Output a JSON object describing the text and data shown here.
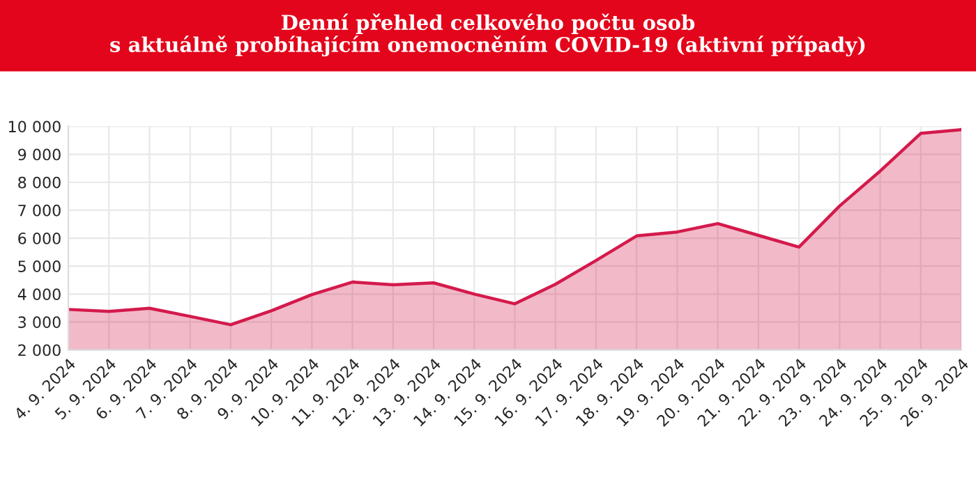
{
  "chart_data": {
    "type": "area",
    "title": "Denní přehled celkového počtu osob\ns aktuálně probíhajícím onemocněním COVID-19 (aktivní případy)",
    "categories": [
      "4. 9. 2024",
      "5. 9. 2024",
      "6. 9. 2024",
      "7. 9. 2024",
      "8. 9. 2024",
      "9. 9. 2024",
      "10. 9. 2024",
      "11. 9. 2024",
      "12. 9. 2024",
      "13. 9. 2024",
      "14. 9. 2024",
      "15. 9. 2024",
      "16. 9. 2024",
      "17. 9. 2024",
      "18. 9. 2024",
      "19. 9. 2024",
      "20. 9. 2024",
      "21. 9. 2024",
      "22. 9. 2024",
      "23. 9. 2024",
      "24. 9. 2024",
      "25. 9. 2024",
      "26. 9. 2024"
    ],
    "series": [
      {
        "color": "#d41a4c",
        "values": [
          3450,
          3380,
          3490,
          3200,
          2900,
          3400,
          3980,
          4430,
          4330,
          4400,
          4000,
          3650,
          4350,
          5200,
          6080,
          6220,
          6520,
          6100,
          5680,
          7150,
          8400,
          9750,
          9880
        ]
      }
    ],
    "ylim": [
      2000,
      10000
    ],
    "yticks": [
      {
        "value": 2000,
        "label": "2 000"
      },
      {
        "value": 3000,
        "label": "3 000"
      },
      {
        "value": 4000,
        "label": "4 000"
      },
      {
        "value": 5000,
        "label": "5 000"
      },
      {
        "value": 6000,
        "label": "6 000"
      },
      {
        "value": 7000,
        "label": "7 000"
      },
      {
        "value": 8000,
        "label": "8 000"
      },
      {
        "value": 9000,
        "label": "9 000"
      },
      {
        "value": 10000,
        "label": "10 000"
      }
    ],
    "grid": true,
    "legend": false
  }
}
